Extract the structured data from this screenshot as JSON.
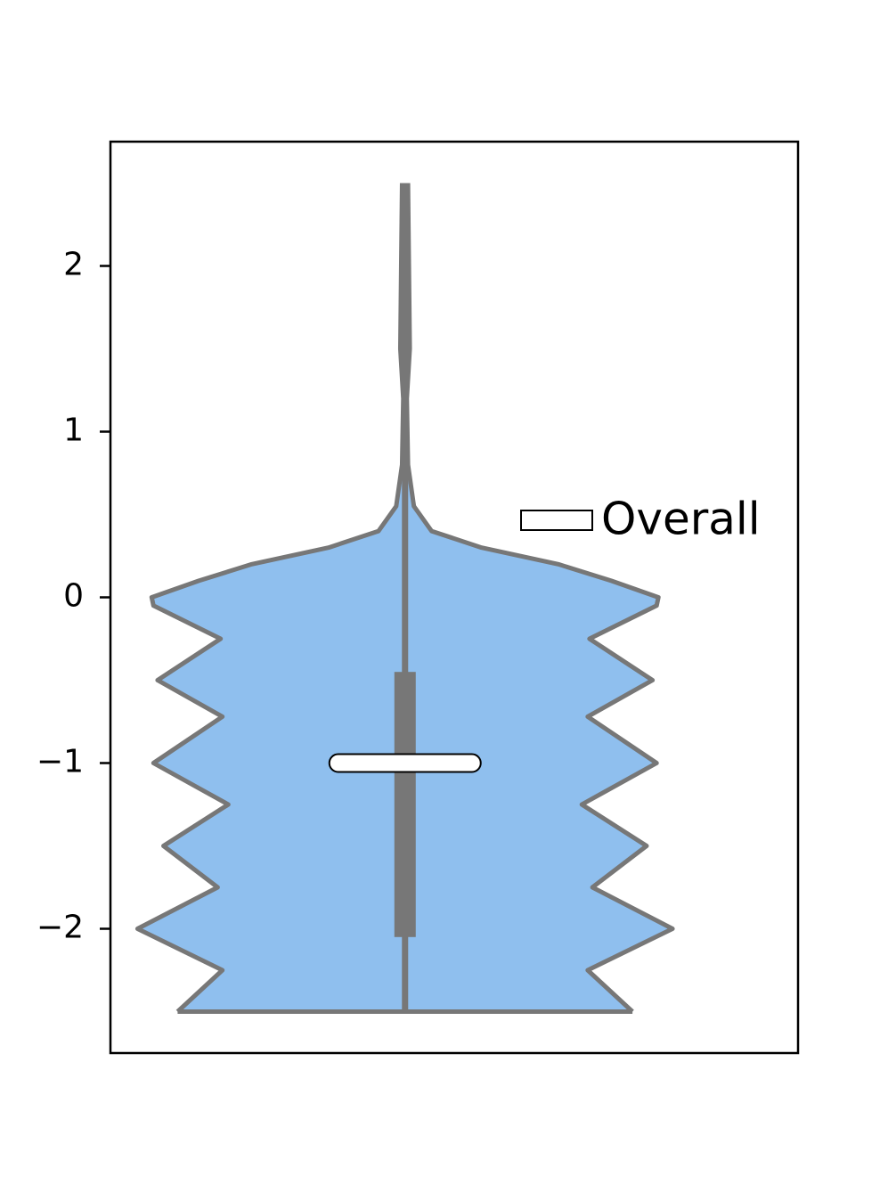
{
  "chart_data": {
    "type": "violin",
    "ylim": [
      -2.75,
      2.75
    ],
    "yticks": [
      {
        "value": -2,
        "label": "−2"
      },
      {
        "value": -1,
        "label": "−1"
      },
      0,
      1,
      2
    ],
    "xlim": [
      -0.5,
      0.667
    ],
    "position": 0,
    "color": "#8fbfee",
    "edge_color": "#777777",
    "violin": {
      "y": [
        2.5,
        1.5,
        1.2,
        0.8,
        0.55,
        0.4,
        0.3,
        0.2,
        0.1,
        0.0,
        -0.05,
        -0.25,
        -0.5,
        -0.72,
        -1.0,
        -1.25,
        -1.5,
        -1.75,
        -2.0,
        -2.25,
        -2.5
      ],
      "half_width": [
        0.005,
        0.008,
        0.003,
        0.005,
        0.015,
        0.045,
        0.13,
        0.26,
        0.35,
        0.43,
        0.427,
        0.313,
        0.42,
        0.31,
        0.427,
        0.3,
        0.41,
        0.318,
        0.454,
        0.31,
        0.386
      ]
    },
    "box": {
      "whisker_low": -2.5,
      "whisker_high": 2.5,
      "q1": -2.05,
      "q3": -0.45,
      "median": -1.0
    },
    "legend": {
      "label": "Overall",
      "color": "#ffffff",
      "position": "right"
    }
  }
}
